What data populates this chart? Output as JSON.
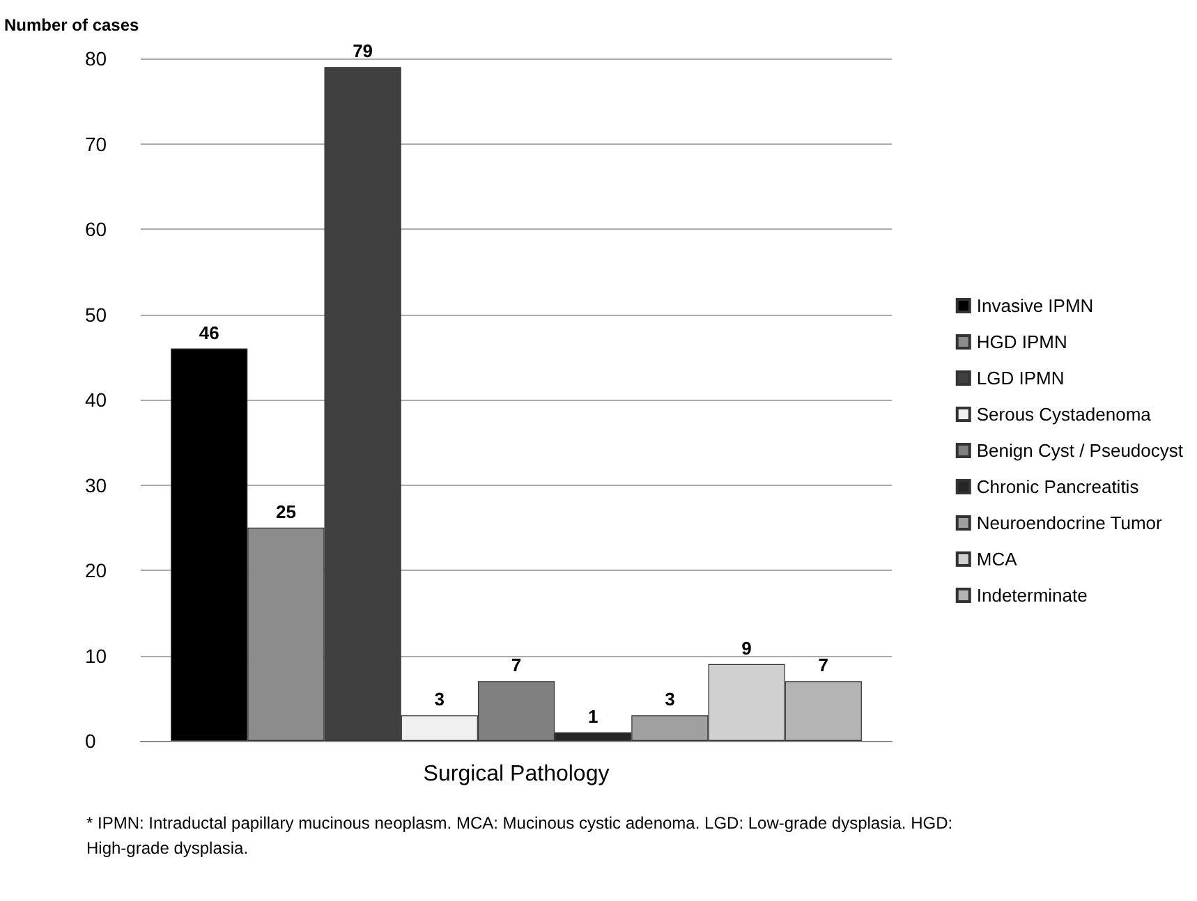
{
  "chart_data": {
    "type": "bar",
    "ylabel": "Number of cases",
    "categories": [
      "Surgical Pathology"
    ],
    "series": [
      {
        "name": "Invasive IPMN",
        "color": "#000000",
        "values": [
          46
        ]
      },
      {
        "name": "HGD IPMN",
        "color": "#8c8c8c",
        "values": [
          25
        ]
      },
      {
        "name": "LGD IPMN",
        "color": "#404040",
        "values": [
          79
        ]
      },
      {
        "name": "Serous Cystadenoma",
        "color": "#f0f0f0",
        "values": [
          3
        ]
      },
      {
        "name": "Benign Cyst / Pseudocyst",
        "color": "#808080",
        "values": [
          7
        ]
      },
      {
        "name": "Chronic Pancreatitis",
        "color": "#262626",
        "values": [
          1
        ]
      },
      {
        "name": "Neuroendocrine Tumor",
        "color": "#a0a0a0",
        "values": [
          3
        ]
      },
      {
        "name": "MCA",
        "color": "#d0d0d0",
        "values": [
          9
        ]
      },
      {
        "name": "Indeterminate",
        "color": "#b4b4b4",
        "values": [
          7
        ]
      }
    ],
    "ylim": [
      0,
      80
    ],
    "yticks": [
      0,
      10,
      20,
      30,
      40,
      50,
      60,
      70,
      80
    ],
    "grid": "y",
    "legend": "right",
    "data_labels": true,
    "annotations": [
      "* IPMN: Intraductal papillary mucinous neoplasm. MCA: Mucinous cystic adenoma. LGD: Low-grade dysplasia. HGD: High-grade dysplasia."
    ]
  }
}
